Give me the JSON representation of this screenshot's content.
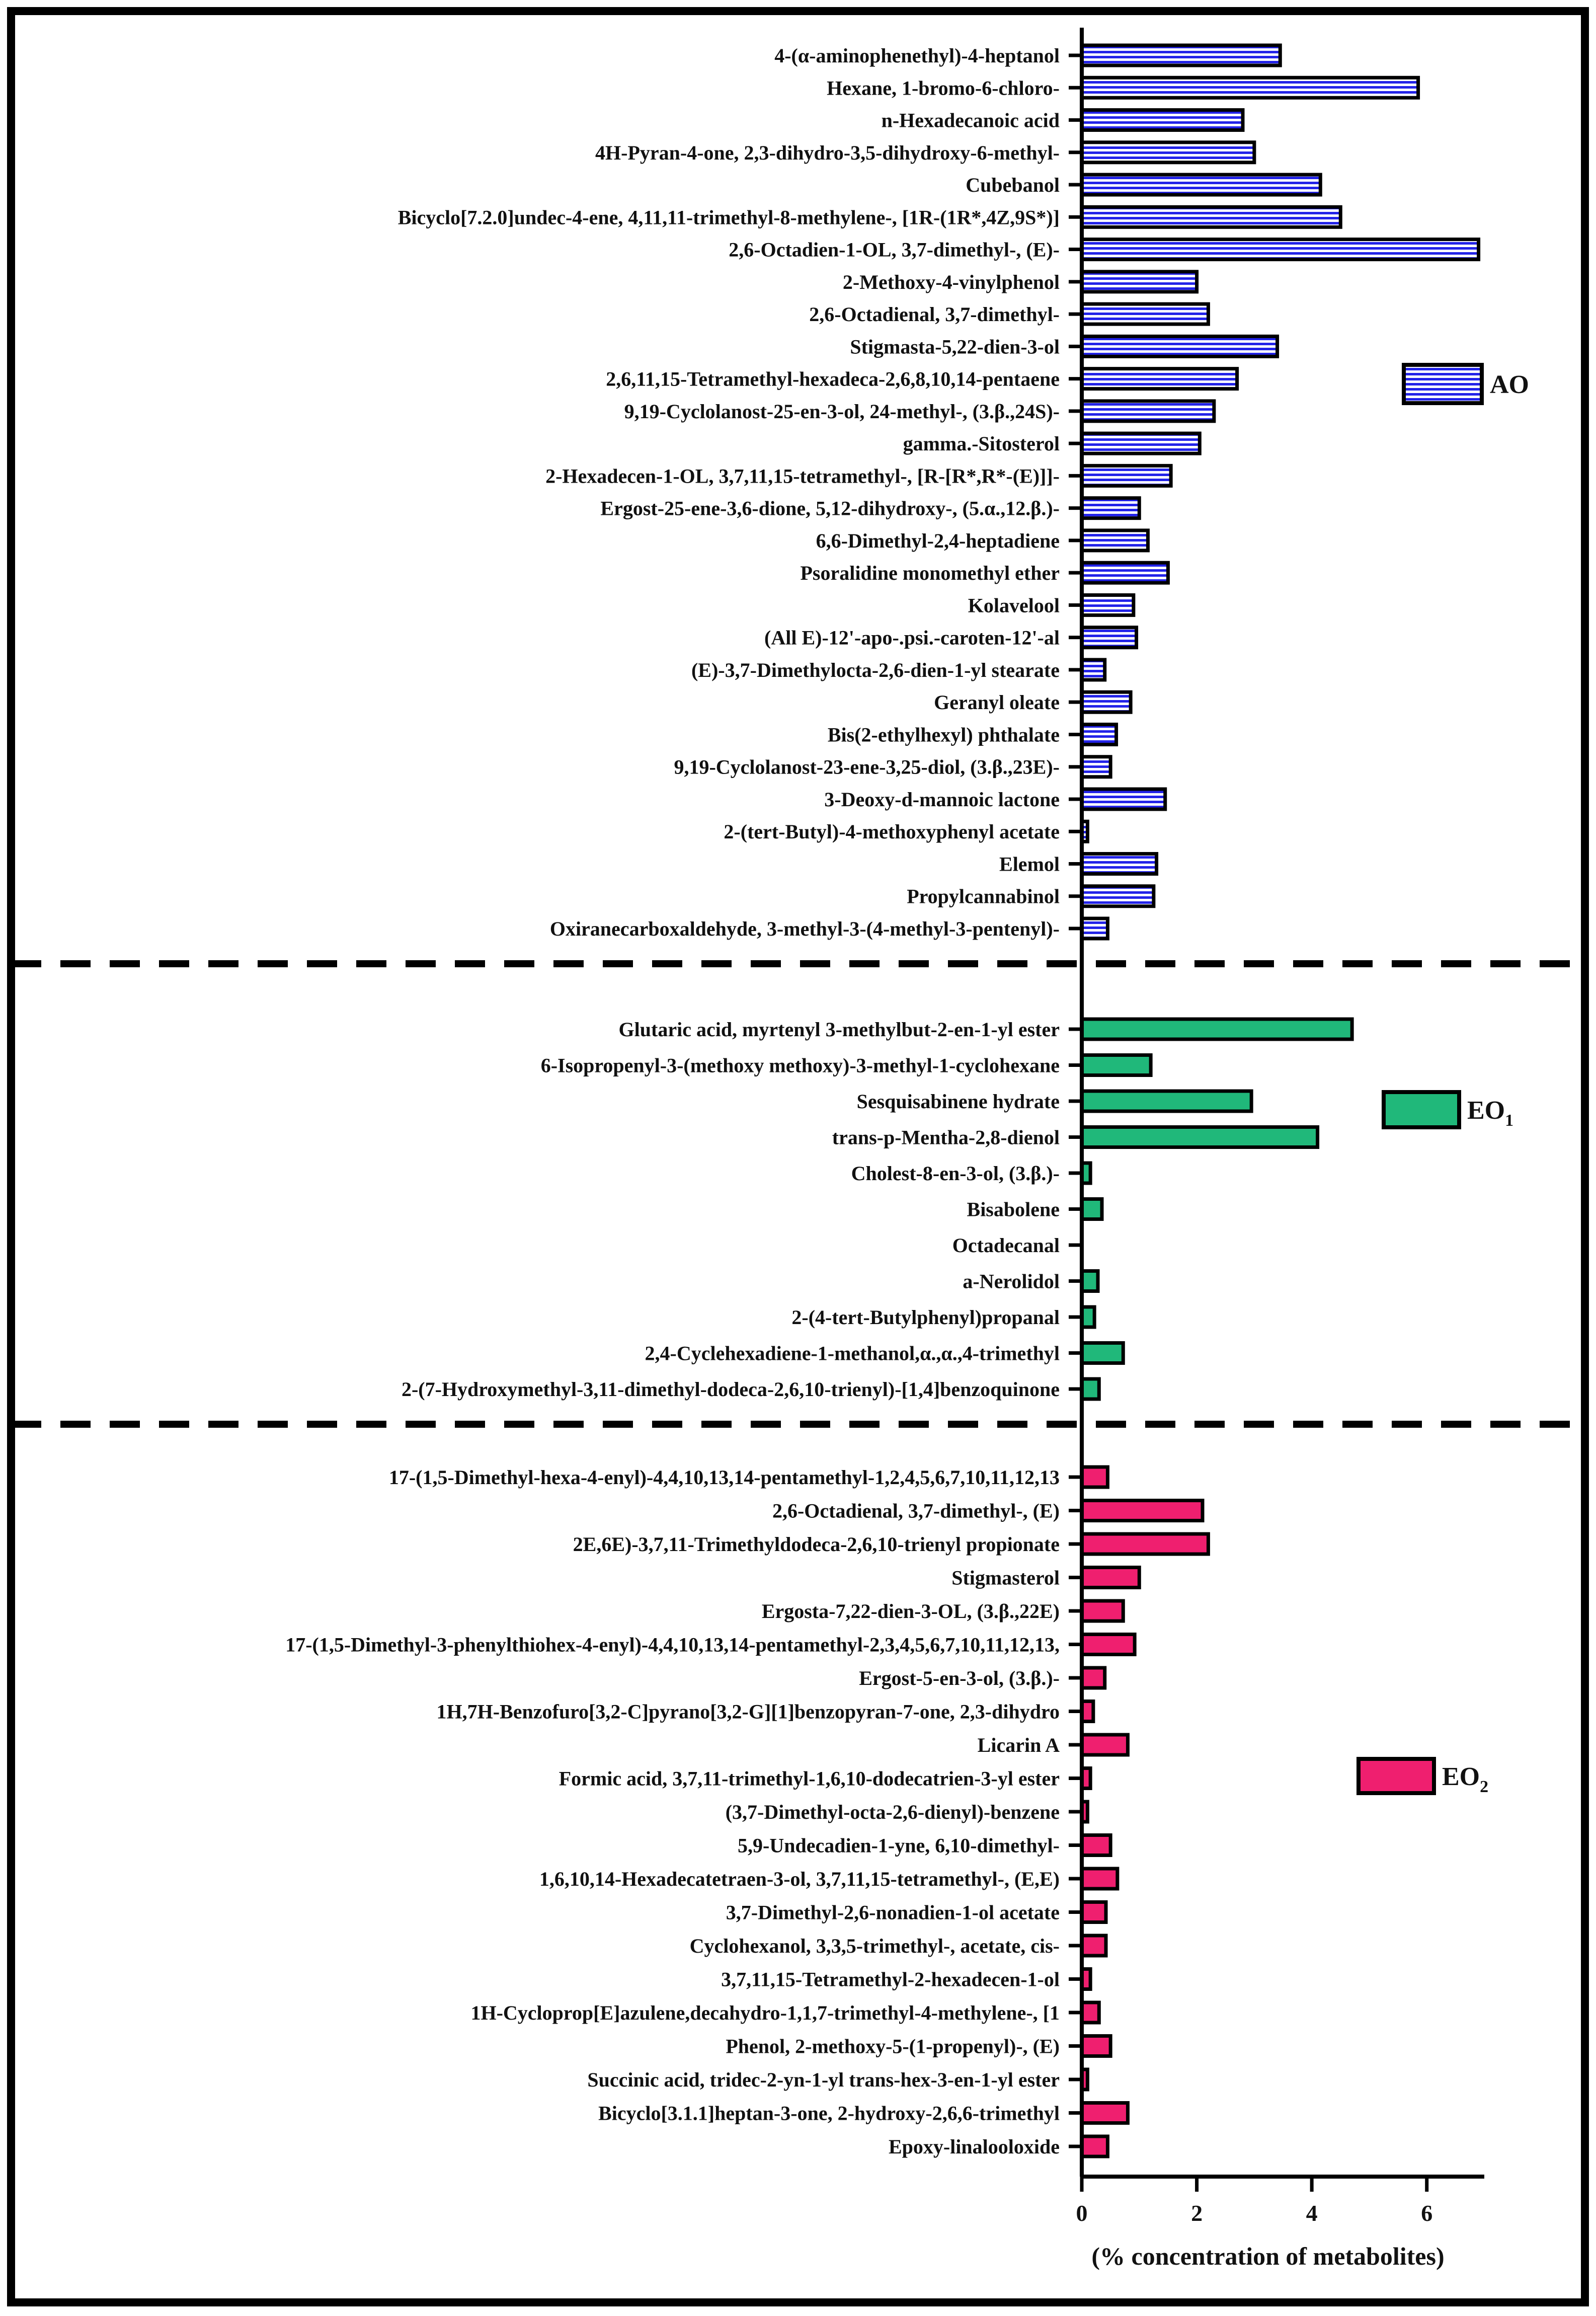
{
  "chart_data": {
    "type": "bar",
    "orientation": "horizontal",
    "title": "",
    "xlabel": "(% concentration of metabolites)",
    "ylabel": "",
    "xlim": [
      0,
      7
    ],
    "xticks": [
      0,
      2,
      4,
      6
    ],
    "xtick_labels": [
      "0",
      "2",
      "4",
      "6"
    ],
    "grid": false,
    "legend_placement": "right of each panel",
    "colors": {
      "AO": "#2323e8",
      "EO1": "#20b87a",
      "EO2": "#ef1f6f",
      "frame": "#000000"
    },
    "series": [
      {
        "name": "AO",
        "legend_label": "AO",
        "pattern": "horizontal-lines",
        "categories": [
          "4-(α-aminophenethyl)-4-heptanol",
          "Hexane, 1-bromo-6-chloro-",
          "n-Hexadecanoic acid",
          "4H-Pyran-4-one, 2,3-dihydro-3,5-dihydroxy-6-methyl-",
          "Cubebanol",
          "Bicyclo[7.2.0]undec-4-ene, 4,11,11-trimethyl-8-methylene-, [1R-(1R*,4Z,9S*)]",
          "2,6-Octadien-1-OL, 3,7-dimethyl-, (E)-",
          "2-Methoxy-4-vinylphenol",
          "2,6-Octadienal, 3,7-dimethyl-",
          "Stigmasta-5,22-dien-3-ol",
          "2,6,11,15-Tetramethyl-hexadeca-2,6,8,10,14-pentaene",
          "9,19-Cyclolanost-25-en-3-ol, 24-methyl-, (3.β.,24S)-",
          "gamma.-Sitosterol",
          "2-Hexadecen-1-OL, 3,7,11,15-tetramethyl-, [R-[R*,R*-(E)]]-",
          "Ergost-25-ene-3,6-dione, 5,12-dihydroxy-, (5.α.,12.β.)-",
          "6,6-Dimethyl-2,4-heptadiene",
          "Psoralidine monomethyl ether",
          "Kolavelool",
          "(All E)-12'-apo-.psi.-caroten-12'-al",
          "(E)-3,7-Dimethylocta-2,6-dien-1-yl stearate",
          "Geranyl oleate",
          "Bis(2-ethylhexyl) phthalate",
          "9,19-Cyclolanost-23-ene-3,25-diol, (3.β.,23E)-",
          "3-Deoxy-d-mannoic lactone",
          "2-(tert-Butyl)-4-methoxyphenyl acetate",
          "Elemol",
          "Propylcannabinol",
          "Oxiranecarboxaldehyde, 3-methyl-3-(4-methyl-3-pentenyl)-"
        ],
        "values": [
          3.45,
          5.85,
          2.8,
          3.0,
          4.15,
          4.5,
          6.9,
          2.0,
          2.2,
          3.4,
          2.7,
          2.3,
          2.05,
          1.55,
          1.0,
          1.15,
          1.5,
          0.9,
          0.95,
          0.4,
          0.85,
          0.6,
          0.5,
          1.45,
          0.1,
          1.3,
          1.25,
          0.45
        ]
      },
      {
        "name": "EO1",
        "legend_label": "EO",
        "legend_subscript": "1",
        "pattern": "solid",
        "categories": [
          "Glutaric acid, myrtenyl 3-methylbut-2-en-1-yl ester",
          "6-Isopropenyl-3-(methoxy methoxy)-3-methyl-1-cyclohexane",
          "Sesquisabinene hydrate",
          "trans-p-Mentha-2,8-dienol",
          "Cholest-8-en-3-ol, (3.β.)-",
          "Bisabolene",
          "Octadecanal",
          "a-Nerolidol",
          "2-(4-tert-Butylphenyl)propanal",
          "2,4-Cyclehexadiene-1-methanol,α.,α.,4-trimethyl",
          "2-(7-Hydroxymethyl-3,11-dimethyl-dodeca-2,6,10-trienyl)-[1,4]benzoquinone"
        ],
        "values": [
          4.7,
          1.2,
          2.95,
          4.1,
          0.15,
          0.35,
          0.0,
          0.28,
          0.22,
          0.72,
          0.3
        ]
      },
      {
        "name": "EO2",
        "legend_label": "EO",
        "legend_subscript": "2",
        "pattern": "solid",
        "categories": [
          "17-(1,5-Dimethyl-hexa-4-enyl)-4,4,10,13,14-pentamethyl-1,2,4,5,6,7,10,11,12,13",
          "2,6-Octadienal, 3,7-dimethyl-, (E)",
          "2E,6E)-3,7,11-Trimethyldodeca-2,6,10-trienyl propionate",
          "Stigmasterol",
          "Ergosta-7,22-dien-3-OL, (3.β.,22E)",
          "17-(1,5-Dimethyl-3-phenylthiohex-4-enyl)-4,4,10,13,14-pentamethyl-2,3,4,5,6,7,10,11,12,13,",
          "Ergost-5-en-3-ol, (3.β.)-",
          "1H,7H-Benzofuro[3,2-C]pyrano[3,2-G][1]benzopyran-7-one, 2,3-dihydro",
          "Licarin A",
          "Formic acid, 3,7,11-trimethyl-1,6,10-dodecatrien-3-yl ester",
          "(3,7-Dimethyl-octa-2,6-dienyl)-benzene",
          "5,9-Undecadien-1-yne, 6,10-dimethyl-",
          "1,6,10,14-Hexadecatetraen-3-ol, 3,7,11,15-tetramethyl-, (E,E)",
          "3,7-Dimethyl-2,6-nonadien-1-ol acetate",
          "Cyclohexanol, 3,3,5-trimethyl-, acetate, cis-",
          "3,7,11,15-Tetramethyl-2-hexadecen-1-ol",
          "1H-Cycloprop[E]azulene,decahydro-1,1,7-trimethyl-4-methylene-, [1",
          "Phenol, 2-methoxy-5-(1-propenyl)-, (E)",
          "Succinic acid, tridec-2-yn-1-yl trans-hex-3-en-1-yl ester",
          "Bicyclo[3.1.1]heptan-3-one, 2-hydroxy-2,6,6-trimethyl",
          "Epoxy-linalooloxide"
        ],
        "values": [
          0.45,
          2.1,
          2.2,
          1.0,
          0.72,
          0.92,
          0.4,
          0.2,
          0.8,
          0.15,
          0.1,
          0.5,
          0.62,
          0.42,
          0.42,
          0.15,
          0.3,
          0.5,
          0.1,
          0.8,
          0.45
        ]
      }
    ]
  }
}
